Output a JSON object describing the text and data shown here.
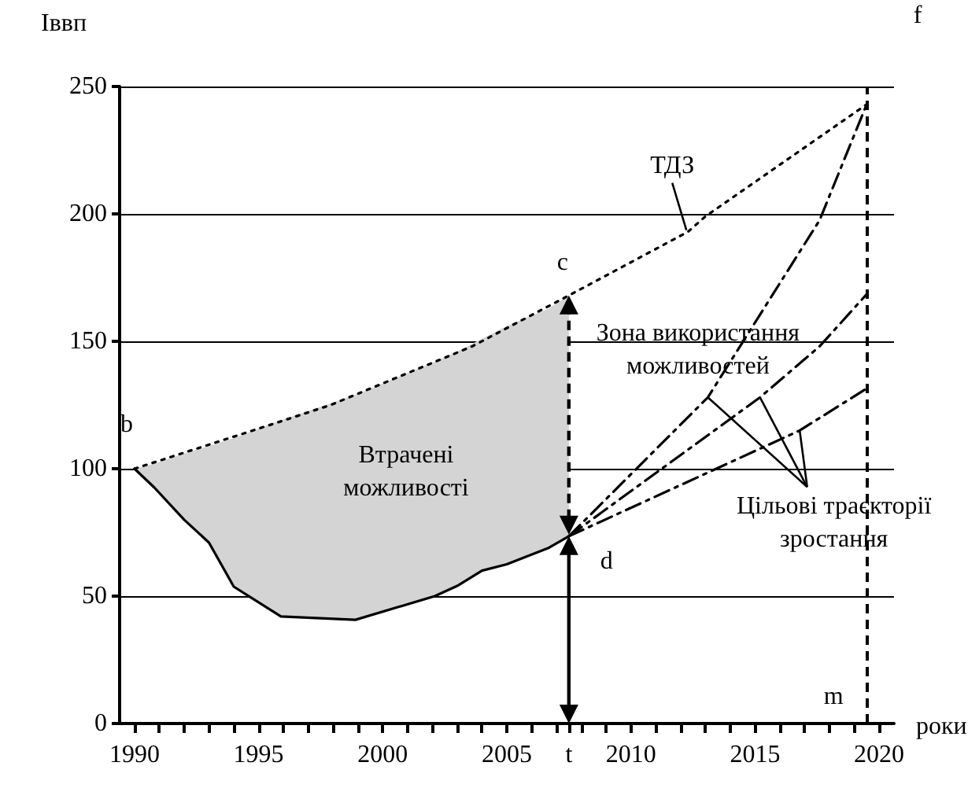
{
  "chart_data": {
    "type": "line",
    "xlabel": "роки",
    "ylabel": "Іввп",
    "xlim": [
      1989.4,
      2020.6
    ],
    "ylim": [
      0,
      250
    ],
    "xticks": [
      1990,
      {
        "value": 1991,
        "label": null
      },
      {
        "value": 1992,
        "label": null
      },
      {
        "value": 1993,
        "label": null
      },
      {
        "value": 1994,
        "label": null
      },
      1995,
      {
        "value": 1996,
        "label": null
      },
      {
        "value": 1997,
        "label": null
      },
      {
        "value": 1998,
        "label": null
      },
      {
        "value": 1999,
        "label": null
      },
      2000,
      {
        "value": 2001,
        "label": null
      },
      {
        "value": 2002,
        "label": null
      },
      {
        "value": 2003,
        "label": null
      },
      {
        "value": 2004,
        "label": null
      },
      2005,
      {
        "value": 2006,
        "label": null
      },
      {
        "value": 2007,
        "label": null
      },
      {
        "value": 2007.5,
        "label": "t"
      },
      {
        "value": 2008,
        "label": null
      },
      {
        "value": 2009,
        "label": null
      },
      2010,
      {
        "value": 2011,
        "label": null
      },
      {
        "value": 2012,
        "label": null
      },
      {
        "value": 2013,
        "label": null
      },
      {
        "value": 2014,
        "label": null
      },
      2015,
      {
        "value": 2016,
        "label": null
      },
      {
        "value": 2017,
        "label": null
      },
      {
        "value": 2018,
        "label": null
      },
      {
        "value": 2019,
        "label": null
      },
      2020
    ],
    "yticks": [
      0,
      50,
      100,
      150,
      200,
      250
    ],
    "grid": "y",
    "series": [
      {
        "color": "#000000",
        "line_style": "dotted",
        "x": [
          1990,
          1995.4,
          1997.9,
          2003.6,
          2007.5,
          2012.3,
          2013,
          2019.5
        ],
        "values": [
          100,
          117,
          125,
          148,
          168,
          193,
          199,
          243
        ]
      },
      {
        "color": "#000000",
        "line_style": "solid",
        "x": [
          1990,
          1990.8,
          1992,
          1993,
          1994,
          1995.9,
          1998.9,
          2002.1,
          2003,
          2004,
          2005,
          2006.7,
          2007.5
        ],
        "values": [
          100,
          92.6,
          80,
          71,
          53.7,
          42,
          40.7,
          50,
          54,
          60,
          62.5,
          69,
          73.5
        ],
        "lower": [
          100,
          92.6,
          80,
          71,
          53.7,
          42,
          40.7,
          50,
          54,
          60,
          62.5,
          69,
          73.5
        ],
        "upper": [
          100,
          102,
          106,
          109,
          112,
          119,
          129,
          142,
          146,
          151,
          156,
          163,
          168
        ]
      },
      {
        "color": "#000000",
        "line_style": "dashed",
        "x": [
          2007.5,
          2013.1,
          2017.6,
          2019.5
        ],
        "values": [
          73.5,
          128,
          197.5,
          243
        ]
      },
      {
        "color": "#000000",
        "line_style": "dashed",
        "x": [
          2007.5,
          2015.2,
          2017.6,
          2019.5
        ],
        "values": [
          73.5,
          128,
          148,
          168.5
        ]
      },
      {
        "color": "#000000",
        "line_style": "dashed",
        "x": [
          2007.5,
          2016.8,
          2019.5
        ],
        "values": [
          73.5,
          115,
          131.5
        ]
      }
    ],
    "ref_lines": [
      {
        "axis": "x",
        "value": 2019.5,
        "label": null,
        "line_style": "dashed"
      }
    ],
    "annotations": [
      {
        "text": "b",
        "x": 1990,
        "y": 100
      },
      {
        "text": "c",
        "x": 2007.5,
        "y": 168
      },
      {
        "text": "d",
        "x": 2007.5,
        "y": 73.5
      },
      {
        "text": "m",
        "x": 2019.5,
        "y": 0
      },
      "f",
      {
        "text": "ТДЗ",
        "x": 2012.3,
        "y": 193
      },
      "Втрачені можливості",
      {
        "text": "Зона використання можливостей",
        "x": 2007.5,
        "y": 120
      },
      {
        "text": "Цільові траєкторії зростання",
        "x": 2015.2,
        "y": 128
      }
    ]
  }
}
